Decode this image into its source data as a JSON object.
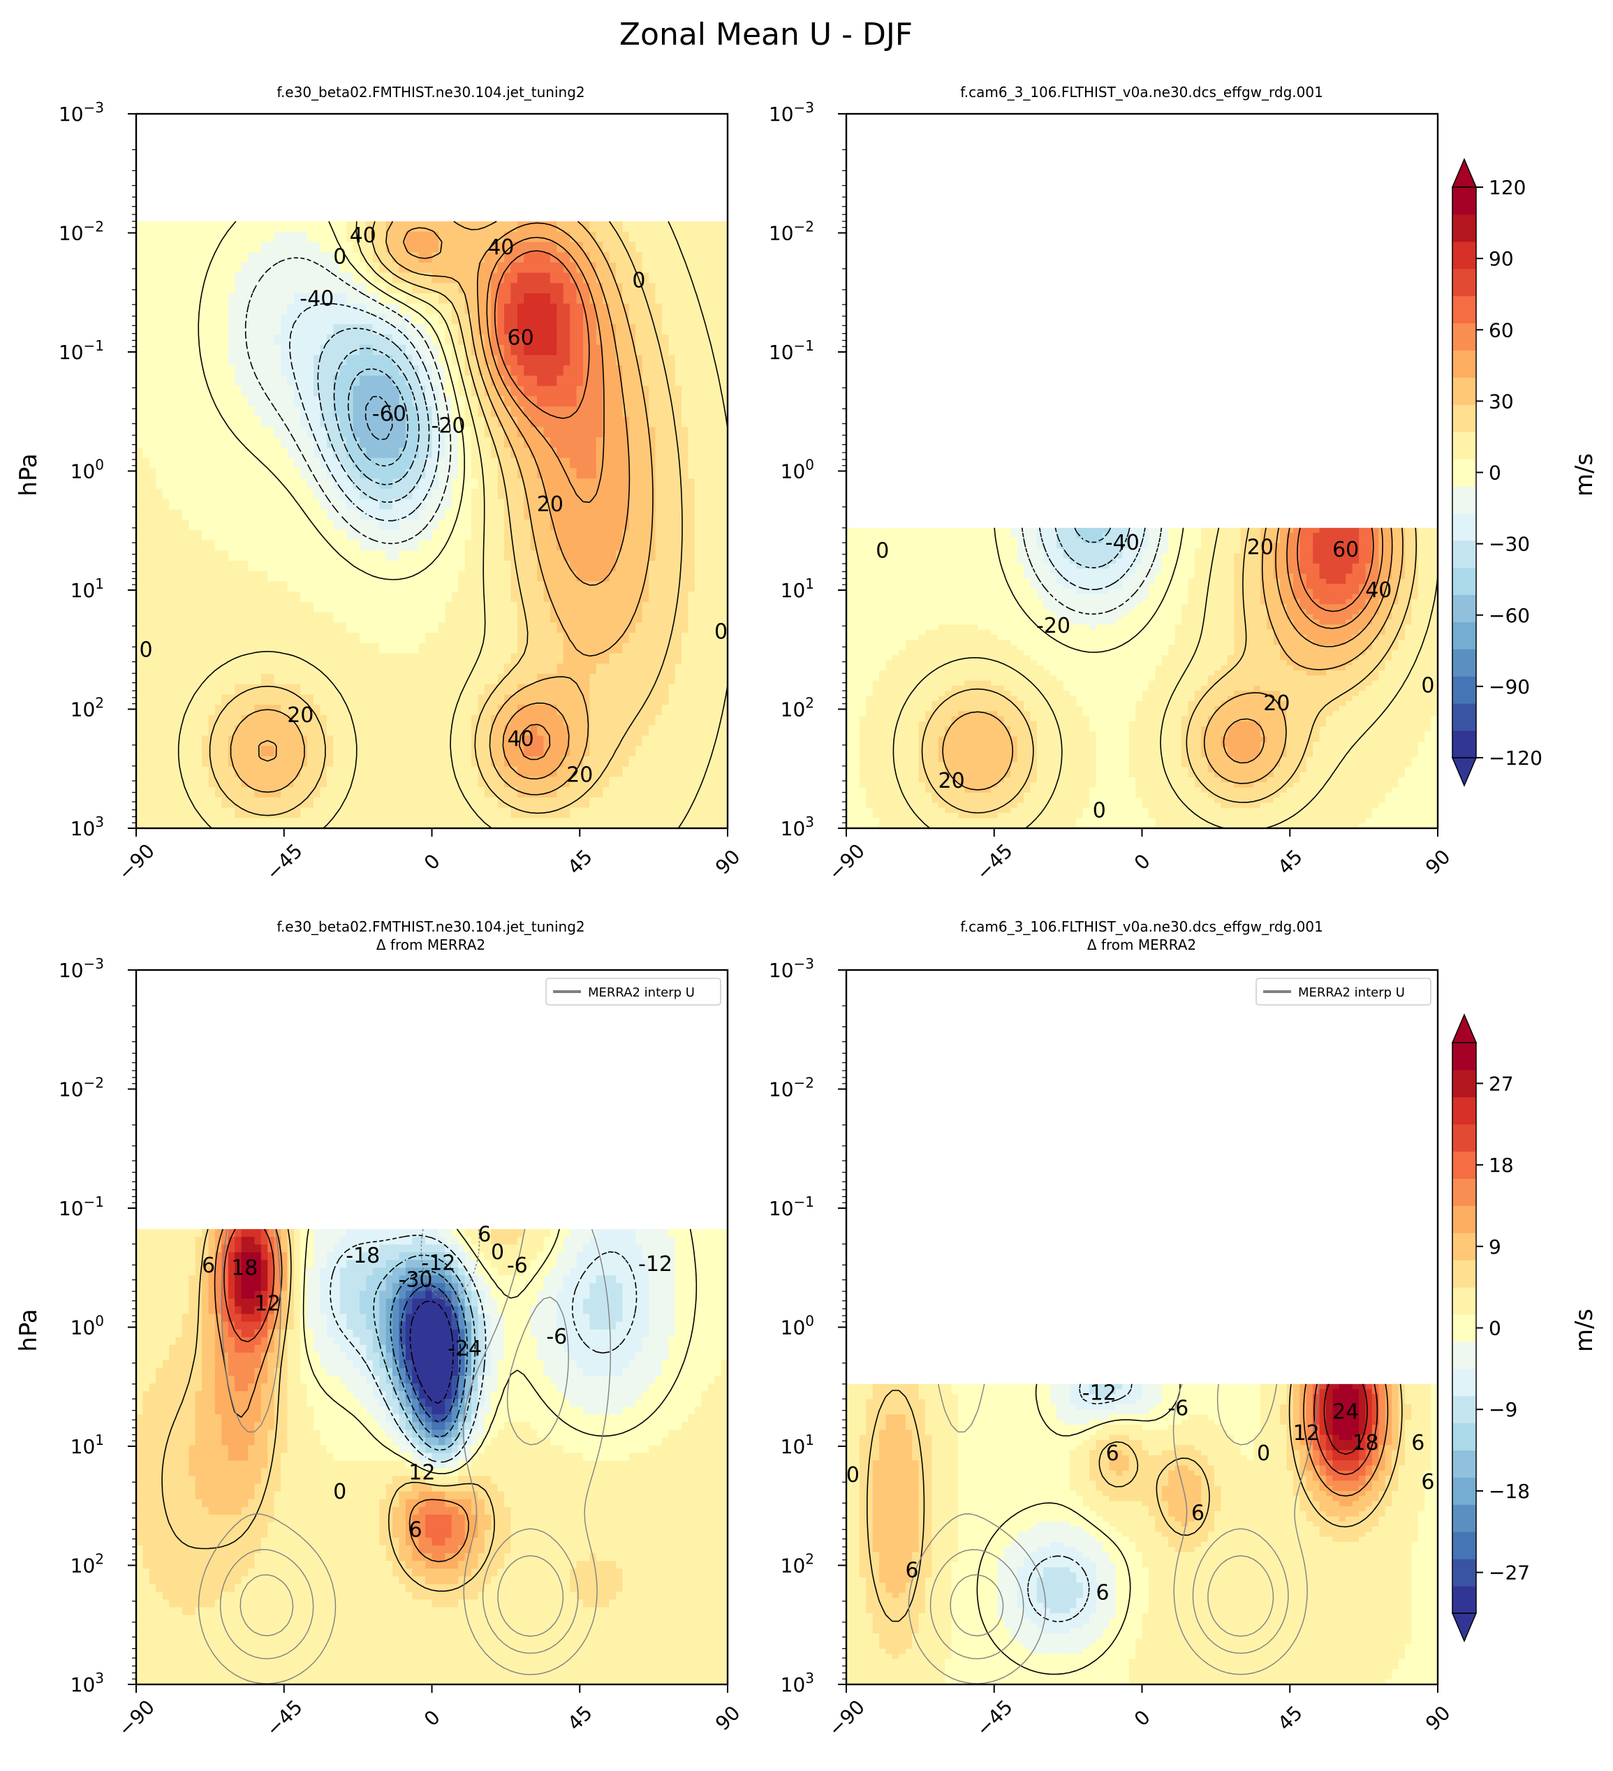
{
  "figure_title": "Zonal Mean U - DJF",
  "colors": {
    "diverging": [
      "#313695",
      "#3a54a4",
      "#4575b4",
      "#5b8fc2",
      "#74add1",
      "#91c0dc",
      "#abd9e9",
      "#c4e5f0",
      "#e0f3f8",
      "#eef8ef",
      "#ffffbf",
      "#fff3aa",
      "#fee090",
      "#fec877",
      "#fdae61",
      "#f98e52",
      "#f46d43",
      "#e34a33",
      "#d73027",
      "#b4161f",
      "#a50026"
    ],
    "contour": "#000000",
    "merra_line": "#808080",
    "frame": "#000000"
  },
  "chart_data": [
    {
      "id": "tl",
      "type": "heatmap",
      "title": "f.e30_beta02.FMTHIST.ne30.104.jet_tuning2",
      "xlabel": "",
      "ylabel": "hPa",
      "xlim": [
        -90,
        90
      ],
      "ylim_hpa": [
        1000,
        0.001
      ],
      "xticks": [
        "−90",
        "−45",
        "0",
        "45",
        "90"
      ],
      "xtick_values": [
        -90,
        -45,
        0,
        45,
        90
      ],
      "yticks": [
        {
          "base": "10",
          "exp": "−3"
        },
        {
          "base": "10",
          "exp": "−2"
        },
        {
          "base": "10",
          "exp": "−1"
        },
        {
          "base": "10",
          "exp": "0"
        },
        {
          "base": "10",
          "exp": "1"
        },
        {
          "base": "10",
          "exp": "2"
        },
        {
          "base": "10",
          "exp": "3"
        }
      ],
      "ytick_exponents": [
        -3,
        -2,
        -1,
        0,
        1,
        2,
        3
      ],
      "data_top_hpa": 0.008,
      "field_range": [
        -120,
        120
      ],
      "features": [
        {
          "lat": -15,
          "logp": -0.4,
          "value": -65,
          "slat": 13,
          "slogp": 0.6,
          "tilt": 0.028
        },
        {
          "lat": -42,
          "logp": -1.2,
          "value": -22,
          "slat": 18,
          "slogp": 0.7,
          "tilt": 0
        },
        {
          "lat": 30,
          "logp": -1.3,
          "value": 72,
          "slat": 12,
          "slogp": 0.55,
          "tilt": 0
        },
        {
          "lat": 45,
          "logp": -0.2,
          "value": 35,
          "slat": 15,
          "slogp": 1.2,
          "tilt": 0
        },
        {
          "lat": -5,
          "logp": -1.9,
          "value": 40,
          "slat": 12,
          "slogp": 0.3,
          "tilt": 0
        },
        {
          "lat": -50,
          "logp": 2.35,
          "value": 35,
          "slat": 13,
          "slogp": 0.4,
          "tilt": 0
        },
        {
          "lat": 30,
          "logp": 2.3,
          "value": 42,
          "slat": 11,
          "slogp": 0.35,
          "tilt": 0
        },
        {
          "lat": 60,
          "logp": 0.8,
          "value": 15,
          "slat": 20,
          "slogp": 1.5,
          "tilt": 0
        }
      ],
      "base_value": 6,
      "contour_levels": [
        -60,
        -50,
        -40,
        -30,
        -20,
        -10,
        0,
        10,
        20,
        30,
        40,
        50,
        60
      ],
      "contour_labels": [
        {
          "text": "40",
          "lat": -21,
          "logp": -1.98
        },
        {
          "text": "0",
          "lat": -28,
          "logp": -1.8
        },
        {
          "text": "-40",
          "lat": -35,
          "logp": -1.45
        },
        {
          "text": "40",
          "lat": 21,
          "logp": -1.88
        },
        {
          "text": "0",
          "lat": 63,
          "logp": -1.6
        },
        {
          "text": "60",
          "lat": 27,
          "logp": -1.12
        },
        {
          "text": "-60",
          "lat": -13,
          "logp": -0.48
        },
        {
          "text": "-20",
          "lat": 5,
          "logp": -0.38
        },
        {
          "text": "20",
          "lat": 36,
          "logp": 0.28
        },
        {
          "text": "20",
          "lat": -40,
          "logp": 2.05
        },
        {
          "text": "40",
          "lat": 27,
          "logp": 2.25
        },
        {
          "text": "20",
          "lat": 45,
          "logp": 2.55
        },
        {
          "text": "0",
          "lat": -87,
          "logp": 1.5
        },
        {
          "text": "0",
          "lat": 88,
          "logp": 1.35
        }
      ],
      "legend": null
    },
    {
      "id": "tr",
      "type": "heatmap",
      "title": "f.cam6_3_106.FLTHIST_v0a.ne30.dcs_effgw_rdg.001",
      "xlabel": "",
      "ylabel": "",
      "xlim": [
        -90,
        90
      ],
      "ylim_hpa": [
        1000,
        0.001
      ],
      "xticks": [
        "−90",
        "−45",
        "0",
        "45",
        "90"
      ],
      "xtick_values": [
        -90,
        -45,
        0,
        45,
        90
      ],
      "yticks": [
        {
          "base": "10",
          "exp": "−3"
        },
        {
          "base": "10",
          "exp": "−2"
        },
        {
          "base": "10",
          "exp": "−1"
        },
        {
          "base": "10",
          "exp": "0"
        },
        {
          "base": "10",
          "exp": "1"
        },
        {
          "base": "10",
          "exp": "2"
        },
        {
          "base": "10",
          "exp": "3"
        }
      ],
      "ytick_exponents": [
        -3,
        -2,
        -1,
        0,
        1,
        2,
        3
      ],
      "data_top_hpa": 3,
      "field_range": [
        -120,
        120
      ],
      "features": [
        {
          "lat": -15,
          "logp": 0.35,
          "value": -50,
          "slat": 14,
          "slogp": 0.55,
          "tilt": 0
        },
        {
          "lat": 60,
          "logp": 0.6,
          "value": 70,
          "slat": 13,
          "slogp": 0.6,
          "tilt": 0
        },
        {
          "lat": -50,
          "logp": 2.35,
          "value": 35,
          "slat": 13,
          "slogp": 0.4,
          "tilt": 0
        },
        {
          "lat": 30,
          "logp": 2.3,
          "value": 35,
          "slat": 12,
          "slogp": 0.35,
          "tilt": 0
        },
        {
          "lat": 45,
          "logp": 1.2,
          "value": 15,
          "slat": 18,
          "slogp": 0.8,
          "tilt": 0
        }
      ],
      "base_value": 5,
      "contour_levels": [
        -40,
        -30,
        -20,
        -10,
        0,
        10,
        20,
        30,
        40,
        50,
        60
      ],
      "contour_labels": [
        {
          "text": "-40",
          "lat": -6,
          "logp": 0.6
        },
        {
          "text": "0",
          "lat": -79,
          "logp": 0.67
        },
        {
          "text": "20",
          "lat": 36,
          "logp": 0.64
        },
        {
          "text": "60",
          "lat": 62,
          "logp": 0.66
        },
        {
          "text": "40",
          "lat": 72,
          "logp": 1.0
        },
        {
          "text": "-20",
          "lat": -27,
          "logp": 1.3
        },
        {
          "text": "20",
          "lat": 41,
          "logp": 1.95
        },
        {
          "text": "20",
          "lat": -58,
          "logp": 2.6
        },
        {
          "text": "0",
          "lat": -13,
          "logp": 2.85
        },
        {
          "text": "0",
          "lat": 87,
          "logp": 1.8
        }
      ],
      "legend": null
    },
    {
      "id": "bl",
      "type": "heatmap",
      "title": "f.e30_beta02.FMTHIST.ne30.104.jet_tuning2",
      "subtitle": "Δ from MERRA2",
      "xlabel": "",
      "ylabel": "hPa",
      "xlim": [
        -90,
        90
      ],
      "ylim_hpa": [
        1000,
        0.001
      ],
      "xticks": [
        "−90",
        "−45",
        "0",
        "45",
        "90"
      ],
      "xtick_values": [
        -90,
        -45,
        0,
        45,
        90
      ],
      "yticks": [
        {
          "base": "10",
          "exp": "−3"
        },
        {
          "base": "10",
          "exp": "−2"
        },
        {
          "base": "10",
          "exp": "−1"
        },
        {
          "base": "10",
          "exp": "0"
        },
        {
          "base": "10",
          "exp": "1"
        },
        {
          "base": "10",
          "exp": "2"
        },
        {
          "base": "10",
          "exp": "3"
        }
      ],
      "ytick_exponents": [
        -3,
        -2,
        -1,
        0,
        1,
        2,
        3
      ],
      "data_top_hpa": 0.15,
      "field_range": [
        -30,
        30
      ],
      "features": [
        {
          "lat": 0,
          "logp": 0.1,
          "value": -36,
          "slat": 9,
          "slogp": 0.5,
          "tilt": 0
        },
        {
          "lat": 3,
          "logp": 0.85,
          "value": -14,
          "slat": 6,
          "slogp": 0.45,
          "tilt": 0
        },
        {
          "lat": -55,
          "logp": -0.5,
          "value": 24,
          "slat": 7,
          "slogp": 0.4,
          "tilt": 0
        },
        {
          "lat": -57,
          "logp": 0.4,
          "value": 9,
          "slat": 8,
          "slogp": 0.8,
          "tilt": 0
        },
        {
          "lat": 2,
          "logp": 1.6,
          "value": 18,
          "slat": 9,
          "slogp": 0.35,
          "tilt": 0
        },
        {
          "lat": 52,
          "logp": -0.3,
          "value": -10,
          "slat": 15,
          "slogp": 0.8,
          "tilt": 0
        },
        {
          "lat": -22,
          "logp": -0.3,
          "value": -10,
          "slat": 12,
          "slogp": 0.5,
          "tilt": 0
        },
        {
          "lat": 25,
          "logp": -0.8,
          "value": 5,
          "slat": 20,
          "slogp": 0.3,
          "tilt": 0
        },
        {
          "lat": -75,
          "logp": 1.3,
          "value": 5,
          "slat": 15,
          "slogp": 1.0,
          "tilt": 0
        },
        {
          "lat": 50,
          "logp": 2.0,
          "value": 3,
          "slat": 30,
          "slogp": 1.0,
          "tilt": 0
        }
      ],
      "base_value": 1.5,
      "contour_levels": [
        -30,
        -24,
        -18,
        -12,
        -6,
        0,
        6,
        12,
        18
      ],
      "contour_labels": [
        {
          "text": "6",
          "lat": 16,
          "logp": -0.78
        },
        {
          "text": "0",
          "lat": 20,
          "logp": -0.63
        },
        {
          "text": "-18",
          "lat": -21,
          "logp": -0.6
        },
        {
          "text": "-12",
          "lat": 2,
          "logp": -0.54
        },
        {
          "text": "-6",
          "lat": 26,
          "logp": -0.52
        },
        {
          "text": "-12",
          "lat": 68,
          "logp": -0.53
        },
        {
          "text": "6",
          "lat": -68,
          "logp": -0.52
        },
        {
          "text": "18",
          "lat": -57,
          "logp": -0.5
        },
        {
          "text": "-30",
          "lat": -5,
          "logp": -0.4
        },
        {
          "text": "12",
          "lat": -50,
          "logp": -0.2
        },
        {
          "text": "-24",
          "lat": 10,
          "logp": 0.18
        },
        {
          "text": "-6",
          "lat": 38,
          "logp": 0.08
        },
        {
          "text": "12",
          "lat": -3,
          "logp": 1.22
        },
        {
          "text": "0",
          "lat": -28,
          "logp": 1.38
        },
        {
          "text": "6",
          "lat": -5,
          "logp": 1.7
        }
      ],
      "legend": {
        "label": "MERRA2 interp U"
      }
    },
    {
      "id": "br",
      "type": "heatmap",
      "title": "f.cam6_3_106.FLTHIST_v0a.ne30.dcs_effgw_rdg.001",
      "subtitle": "Δ from MERRA2",
      "xlabel": "",
      "ylabel": "",
      "xlim": [
        -90,
        90
      ],
      "ylim_hpa": [
        1000,
        0.001
      ],
      "xticks": [
        "−90",
        "−45",
        "0",
        "45",
        "90"
      ],
      "xtick_values": [
        -90,
        -45,
        0,
        45,
        90
      ],
      "yticks": [
        {
          "base": "10",
          "exp": "−3"
        },
        {
          "base": "10",
          "exp": "−2"
        },
        {
          "base": "10",
          "exp": "−1"
        },
        {
          "base": "10",
          "exp": "0"
        },
        {
          "base": "10",
          "exp": "1"
        },
        {
          "base": "10",
          "exp": "2"
        },
        {
          "base": "10",
          "exp": "3"
        }
      ],
      "ytick_exponents": [
        -3,
        -2,
        -1,
        0,
        1,
        2,
        3
      ],
      "data_top_hpa": 3,
      "field_range": [
        -30,
        30
      ],
      "features": [
        {
          "lat": 62,
          "logp": 0.7,
          "value": 30,
          "slat": 9,
          "slogp": 0.5,
          "tilt": 0
        },
        {
          "lat": -10,
          "logp": 0.55,
          "value": -12,
          "slat": 10,
          "slogp": 0.25,
          "tilt": 0
        },
        {
          "lat": -25,
          "logp": 2.2,
          "value": -10,
          "slat": 12,
          "slogp": 0.35,
          "tilt": 0
        },
        {
          "lat": -75,
          "logp": 1.5,
          "value": 9,
          "slat": 8,
          "slogp": 0.9,
          "tilt": 0
        },
        {
          "lat": -8,
          "logp": 1.0,
          "value": 8,
          "slat": 7,
          "slogp": 0.35,
          "tilt": 0
        },
        {
          "lat": 13,
          "logp": 1.4,
          "value": 8,
          "slat": 7,
          "slogp": 0.3,
          "tilt": 0
        },
        {
          "lat": 30,
          "logp": 2.4,
          "value": 2,
          "slat": 30,
          "slogp": 0.6,
          "tilt": 0
        }
      ],
      "base_value": 1,
      "contour_levels": [
        -12,
        -6,
        0,
        6,
        12,
        18,
        24
      ],
      "contour_labels": [
        {
          "text": "-12",
          "lat": -13,
          "logp": 0.55
        },
        {
          "text": "-6",
          "lat": 11,
          "logp": 0.68
        },
        {
          "text": "24",
          "lat": 62,
          "logp": 0.71
        },
        {
          "text": "12",
          "lat": 50,
          "logp": 0.89
        },
        {
          "text": "18",
          "lat": 68,
          "logp": 0.97
        },
        {
          "text": "6",
          "lat": 84,
          "logp": 0.97
        },
        {
          "text": "6",
          "lat": -9,
          "logp": 1.06
        },
        {
          "text": "0",
          "lat": 37,
          "logp": 1.06
        },
        {
          "text": "0",
          "lat": -88,
          "logp": 1.24
        },
        {
          "text": "6",
          "lat": 17,
          "logp": 1.56
        },
        {
          "text": "6",
          "lat": -70,
          "logp": 2.04
        },
        {
          "text": "6",
          "lat": -12,
          "logp": 2.23
        },
        {
          "text": "6",
          "lat": 87,
          "logp": 1.3
        }
      ],
      "legend": {
        "label": "MERRA2 interp U"
      }
    }
  ],
  "colorbars": [
    {
      "id": "cb-top",
      "label": "m/s",
      "ticks": [
        "120",
        "90",
        "60",
        "30",
        "0",
        "−30",
        "−60",
        "−90",
        "−120"
      ],
      "tick_values": [
        120,
        90,
        60,
        30,
        0,
        -30,
        -60,
        -90,
        -120
      ],
      "range": [
        -120,
        120
      ]
    },
    {
      "id": "cb-bottom",
      "label": "m/s",
      "ticks": [
        "27",
        "18",
        "9",
        "0",
        "−9",
        "−18",
        "−27"
      ],
      "tick_values": [
        27,
        18,
        9,
        0,
        -9,
        -18,
        -27
      ],
      "range": [
        -31.5,
        31.5
      ]
    }
  ],
  "merra": {
    "features": [
      {
        "lat": -50,
        "logp": 2.35,
        "value": 35,
        "slat": 13,
        "slogp": 0.4,
        "tilt": 0
      },
      {
        "lat": 30,
        "logp": 2.3,
        "value": 38,
        "slat": 11,
        "slogp": 0.35,
        "tilt": 0
      },
      {
        "lat": -55,
        "logp": -0.2,
        "value": 15,
        "slat": 10,
        "slogp": 1.2,
        "tilt": 0
      },
      {
        "lat": 30,
        "logp": 0.2,
        "value": 25,
        "slat": 18,
        "slogp": 1.2,
        "tilt": 0
      },
      {
        "lat": 10,
        "logp": -0.6,
        "value": -25,
        "slat": 12,
        "slogp": 0.6,
        "tilt": 0
      }
    ],
    "levels": [
      -30,
      -20,
      -10,
      10,
      20,
      30
    ]
  }
}
